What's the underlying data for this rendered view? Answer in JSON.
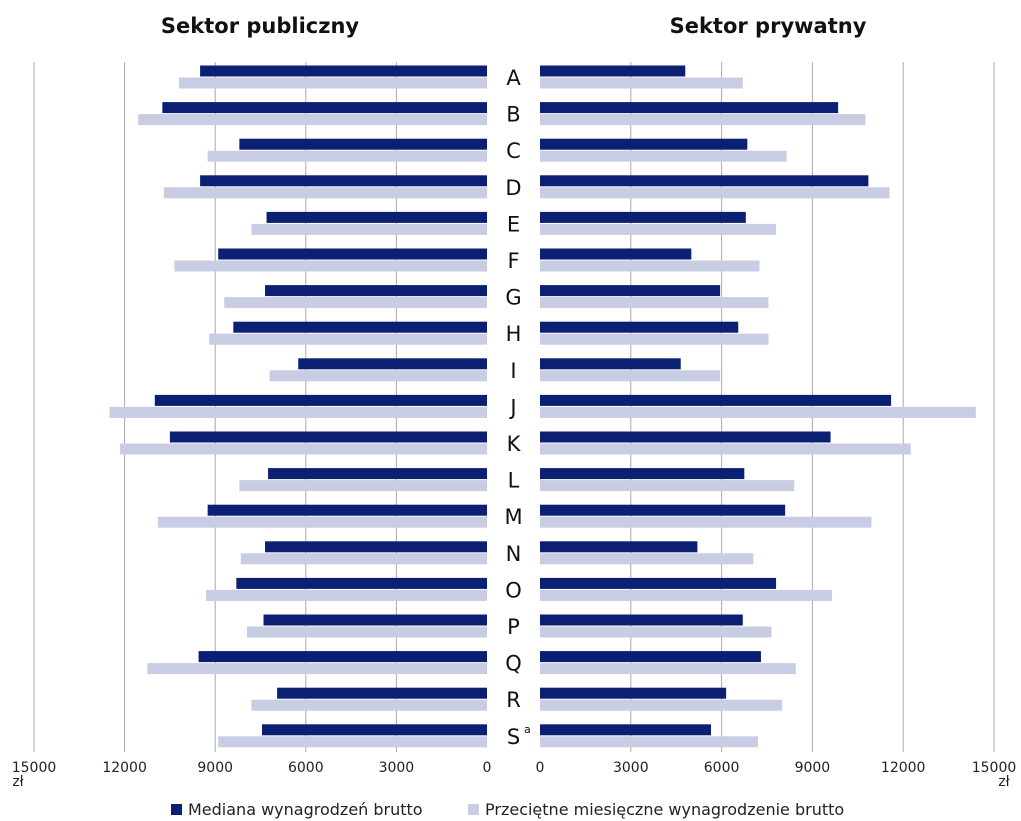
{
  "chart_data": {
    "type": "bar",
    "orientation": "horizontal",
    "layout": "butterfly",
    "categories": [
      "A",
      "B",
      "C",
      "D",
      "E",
      "F",
      "G",
      "H",
      "I",
      "J",
      "K",
      "L",
      "M",
      "N",
      "O",
      "P",
      "Q",
      "R",
      "S"
    ],
    "category_superscripts": {
      "S": "a"
    },
    "unit": "zł",
    "colors": {
      "median": "#0b1f73",
      "average": "#c8cde3",
      "grid": "#a9a9a9"
    },
    "legend": {
      "placement": "bottom",
      "items": [
        {
          "key": "median",
          "label": "Mediana wynagrodzeń brutto"
        },
        {
          "key": "average",
          "label": "Przeciętne miesięczne wynagrodzenie brutto"
        }
      ]
    },
    "panels": [
      {
        "title": "Sektor publiczny",
        "direction": "left",
        "xlim": [
          0,
          15000
        ],
        "ticks": [
          0,
          3000,
          6000,
          9000,
          12000,
          15000
        ],
        "tick_labels": [
          "0",
          "3000",
          "6000",
          "9000",
          "12000",
          "15000"
        ],
        "series": [
          {
            "key": "median",
            "values": [
              9500,
              10750,
              8200,
              9500,
              7300,
              8900,
              7350,
              8400,
              6250,
              11000,
              10500,
              7250,
              9250,
              7350,
              8300,
              7400,
              9550,
              6950,
              7450
            ]
          },
          {
            "key": "average",
            "values": [
              10200,
              11550,
              9250,
              10700,
              7800,
              10350,
              8700,
              9200,
              7200,
              12500,
              12150,
              8200,
              10900,
              8150,
              9300,
              7950,
              11250,
              7800,
              8900
            ]
          }
        ]
      },
      {
        "title": "Sektor prywatny",
        "direction": "right",
        "xlim": [
          0,
          15000
        ],
        "ticks": [
          0,
          3000,
          6000,
          9000,
          12000,
          15000
        ],
        "tick_labels": [
          "0",
          "3000",
          "6000",
          "9000",
          "12000",
          "15000"
        ],
        "series": [
          {
            "key": "median",
            "values": [
              4800,
              9850,
              6850,
              10850,
              6800,
              5000,
              5950,
              6550,
              4650,
              11600,
              9600,
              6750,
              8100,
              5200,
              7800,
              6700,
              7300,
              6150,
              5650
            ]
          },
          {
            "key": "average",
            "values": [
              6700,
              10750,
              8150,
              11550,
              7800,
              7250,
              7550,
              7550,
              5950,
              14400,
              12250,
              8400,
              10950,
              7050,
              9650,
              7650,
              8450,
              8000,
              7200
            ]
          }
        ]
      }
    ]
  }
}
